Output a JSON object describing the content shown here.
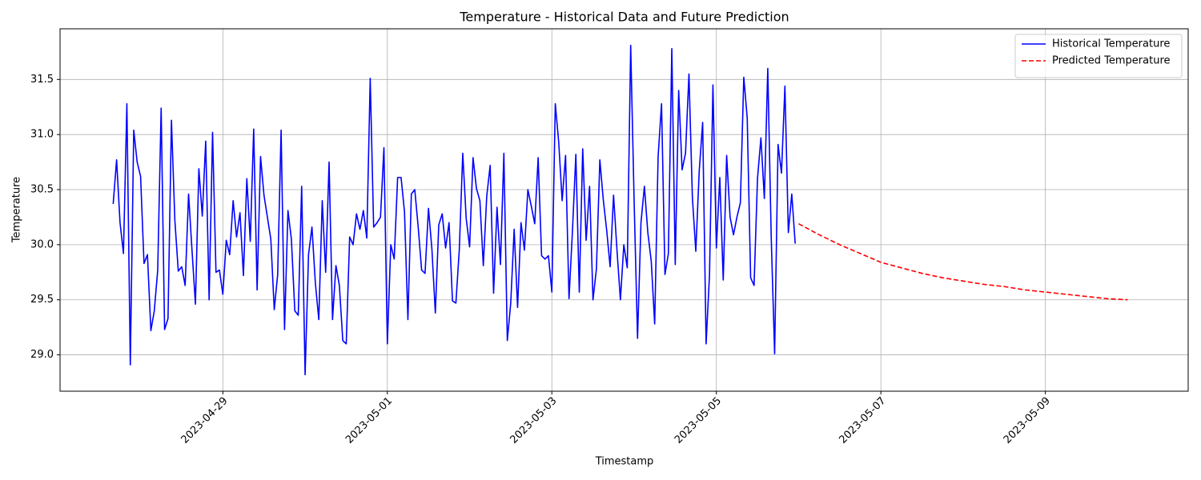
{
  "chart_data": {
    "type": "line",
    "title": "Temperature - Historical Data and Future Prediction",
    "x_label": "Timestamp",
    "y_label": "Temperature",
    "xlim": [
      "2023-04-27T00:30",
      "2023-05-10T17:40"
    ],
    "xticks": [
      "2023-04-29",
      "2023-05-01",
      "2023-05-03",
      "2023-05-05",
      "2023-05-07",
      "2023-05-09"
    ],
    "ylim": [
      28.67,
      31.96
    ],
    "yticks": [
      {
        "value": 29,
        "label": "29.0"
      },
      {
        "value": 29.5,
        "label": "29.5"
      },
      {
        "value": 30,
        "label": "30.0"
      },
      {
        "value": 30.5,
        "label": "30.5"
      },
      {
        "value": 31,
        "label": "31.0"
      },
      31.5
    ],
    "grid": true,
    "legend": "upper right",
    "series": [
      {
        "name": "Historical Temperature",
        "color": "#0000ff",
        "style": "solid",
        "x": [
          "2023-04-27T16:00",
          "2023-04-27T17:00",
          "2023-04-27T18:00",
          "2023-04-27T19:00",
          "2023-04-27T20:00",
          "2023-04-27T21:00",
          "2023-04-27T22:00",
          "2023-04-27T23:00",
          "2023-04-28T00:00",
          "2023-04-28T01:00",
          "2023-04-28T02:00",
          "2023-04-28T03:00",
          "2023-04-28T04:00",
          "2023-04-28T05:00",
          "2023-04-28T06:00",
          "2023-04-28T07:00",
          "2023-04-28T08:00",
          "2023-04-28T09:00",
          "2023-04-28T10:00",
          "2023-04-28T11:00",
          "2023-04-28T12:00",
          "2023-04-28T13:00",
          "2023-04-28T14:00",
          "2023-04-28T15:00",
          "2023-04-28T16:00",
          "2023-04-28T17:00",
          "2023-04-28T18:00",
          "2023-04-28T19:00",
          "2023-04-28T20:00",
          "2023-04-28T21:00",
          "2023-04-28T22:00",
          "2023-04-28T23:00",
          "2023-04-29T00:00",
          "2023-04-29T01:00",
          "2023-04-29T02:00",
          "2023-04-29T03:00",
          "2023-04-29T04:00",
          "2023-04-29T05:00",
          "2023-04-29T06:00",
          "2023-04-29T07:00",
          "2023-04-29T08:00",
          "2023-04-29T09:00",
          "2023-04-29T10:00",
          "2023-04-29T11:00",
          "2023-04-29T12:00",
          "2023-04-29T13:00",
          "2023-04-29T14:00",
          "2023-04-29T15:00",
          "2023-04-29T16:00",
          "2023-04-29T17:00",
          "2023-04-29T18:00",
          "2023-04-29T19:00",
          "2023-04-29T20:00",
          "2023-04-29T21:00",
          "2023-04-29T22:00",
          "2023-04-29T23:00",
          "2023-04-30T00:00",
          "2023-04-30T01:00",
          "2023-04-30T02:00",
          "2023-04-30T03:00",
          "2023-04-30T04:00",
          "2023-04-30T05:00",
          "2023-04-30T06:00",
          "2023-04-30T07:00",
          "2023-04-30T08:00",
          "2023-04-30T09:00",
          "2023-04-30T10:00",
          "2023-04-30T11:00",
          "2023-04-30T12:00",
          "2023-04-30T13:00",
          "2023-04-30T14:00",
          "2023-04-30T15:00",
          "2023-04-30T16:00",
          "2023-04-30T17:00",
          "2023-04-30T18:00",
          "2023-04-30T19:00",
          "2023-04-30T20:00",
          "2023-04-30T21:00",
          "2023-04-30T22:00",
          "2023-04-30T23:00",
          "2023-05-01T00:00",
          "2023-05-01T01:00",
          "2023-05-01T02:00",
          "2023-05-01T03:00",
          "2023-05-01T04:00",
          "2023-05-01T05:00",
          "2023-05-01T06:00",
          "2023-05-01T07:00",
          "2023-05-01T08:00",
          "2023-05-01T09:00",
          "2023-05-01T10:00",
          "2023-05-01T11:00",
          "2023-05-01T12:00",
          "2023-05-01T13:00",
          "2023-05-01T14:00",
          "2023-05-01T15:00",
          "2023-05-01T16:00",
          "2023-05-01T17:00",
          "2023-05-01T18:00",
          "2023-05-01T19:00",
          "2023-05-01T20:00",
          "2023-05-01T21:00",
          "2023-05-01T22:00",
          "2023-05-01T23:00",
          "2023-05-02T00:00",
          "2023-05-02T01:00",
          "2023-05-02T02:00",
          "2023-05-02T03:00",
          "2023-05-02T04:00",
          "2023-05-02T05:00",
          "2023-05-02T06:00",
          "2023-05-02T07:00",
          "2023-05-02T08:00",
          "2023-05-02T09:00",
          "2023-05-02T10:00",
          "2023-05-02T11:00",
          "2023-05-02T12:00",
          "2023-05-02T13:00",
          "2023-05-02T14:00",
          "2023-05-02T15:00",
          "2023-05-02T16:00",
          "2023-05-02T17:00",
          "2023-05-02T18:00",
          "2023-05-02T19:00",
          "2023-05-02T20:00",
          "2023-05-02T21:00",
          "2023-05-02T22:00",
          "2023-05-02T23:00",
          "2023-05-03T00:00",
          "2023-05-03T01:00",
          "2023-05-03T02:00",
          "2023-05-03T03:00",
          "2023-05-03T04:00",
          "2023-05-03T05:00",
          "2023-05-03T06:00",
          "2023-05-03T07:00",
          "2023-05-03T08:00",
          "2023-05-03T09:00",
          "2023-05-03T10:00",
          "2023-05-03T11:00",
          "2023-05-03T12:00",
          "2023-05-03T13:00",
          "2023-05-03T14:00",
          "2023-05-03T15:00",
          "2023-05-03T16:00",
          "2023-05-03T17:00",
          "2023-05-03T18:00",
          "2023-05-03T19:00",
          "2023-05-03T20:00",
          "2023-05-03T21:00",
          "2023-05-03T22:00",
          "2023-05-03T23:00",
          "2023-05-04T00:00",
          "2023-05-04T01:00",
          "2023-05-04T02:00",
          "2023-05-04T03:00",
          "2023-05-04T04:00",
          "2023-05-04T05:00",
          "2023-05-04T06:00",
          "2023-05-04T07:00",
          "2023-05-04T08:00",
          "2023-05-04T09:00",
          "2023-05-04T10:00",
          "2023-05-04T11:00",
          "2023-05-04T12:00",
          "2023-05-04T13:00",
          "2023-05-04T14:00",
          "2023-05-04T15:00",
          "2023-05-04T16:00",
          "2023-05-04T17:00",
          "2023-05-04T18:00",
          "2023-05-04T19:00",
          "2023-05-04T20:00",
          "2023-05-04T21:00",
          "2023-05-04T22:00",
          "2023-05-04T23:00",
          "2023-05-05T00:00",
          "2023-05-05T01:00",
          "2023-05-05T02:00",
          "2023-05-05T03:00",
          "2023-05-05T04:00",
          "2023-05-05T05:00",
          "2023-05-05T06:00",
          "2023-05-05T07:00",
          "2023-05-05T08:00",
          "2023-05-05T09:00",
          "2023-05-05T10:00",
          "2023-05-05T11:00",
          "2023-05-05T12:00",
          "2023-05-05T13:00",
          "2023-05-05T14:00",
          "2023-05-05T15:00",
          "2023-05-05T16:00",
          "2023-05-05T17:00",
          "2023-05-05T18:00",
          "2023-05-05T19:00",
          "2023-05-05T20:00",
          "2023-05-05T21:00",
          "2023-05-05T22:00",
          "2023-05-05T23:00"
        ],
        "values": [
          30.37,
          30.77,
          30.2,
          29.92,
          31.28,
          28.91,
          31.04,
          30.75,
          30.62,
          29.83,
          29.91,
          29.22,
          29.4,
          29.77,
          31.24,
          29.23,
          29.33,
          31.13,
          30.22,
          29.76,
          29.8,
          29.63,
          30.46,
          29.95,
          29.46,
          30.69,
          30.26,
          30.94,
          29.5,
          31.02,
          29.75,
          29.77,
          29.55,
          30.04,
          29.91,
          30.4,
          30.07,
          30.29,
          29.72,
          30.6,
          30.03,
          31.05,
          29.59,
          30.8,
          30.45,
          30.25,
          30.05,
          29.41,
          29.73,
          31.04,
          29.23,
          30.31,
          30.05,
          29.4,
          29.36,
          30.53,
          28.82,
          29.91,
          30.16,
          29.65,
          29.32,
          30.4,
          29.75,
          30.75,
          29.32,
          29.81,
          29.63,
          29.13,
          29.1,
          30.07,
          30.0,
          30.28,
          30.14,
          30.31,
          30.06,
          31.51,
          30.16,
          30.2,
          30.25,
          30.88,
          29.1,
          30.0,
          29.87,
          30.61,
          30.61,
          30.3,
          29.32,
          30.46,
          30.5,
          30.16,
          29.77,
          29.74,
          30.33,
          29.96,
          29.38,
          30.18,
          30.28,
          29.97,
          30.2,
          29.49,
          29.47,
          29.96,
          30.83,
          30.24,
          29.98,
          30.79,
          30.51,
          30.4,
          29.81,
          30.44,
          30.72,
          29.56,
          30.34,
          29.82,
          30.83,
          29.13,
          29.47,
          30.14,
          29.43,
          30.2,
          29.95,
          30.5,
          30.35,
          30.19,
          30.79,
          29.9,
          29.87,
          29.9,
          29.57,
          31.28,
          30.93,
          30.4,
          30.81,
          29.51,
          30.12,
          30.82,
          29.57,
          30.87,
          30.04,
          30.53,
          29.5,
          29.78,
          30.77,
          30.41,
          30.13,
          29.8,
          30.45,
          29.95,
          29.5,
          30.0,
          29.79,
          31.81,
          30.4,
          29.15,
          30.2,
          30.53,
          30.11,
          29.85,
          29.28,
          30.8,
          31.28,
          29.73,
          29.92,
          31.78,
          29.82,
          31.4,
          30.68,
          30.83,
          31.55,
          30.43,
          29.94,
          30.67,
          31.11,
          29.1,
          29.73,
          31.45,
          29.97,
          30.61,
          29.68,
          30.81,
          30.25,
          30.09,
          30.25,
          30.38,
          31.52,
          31.15,
          29.7,
          29.63,
          30.6,
          30.97,
          30.42,
          31.6,
          30.07,
          29.01,
          30.91,
          30.65,
          31.44,
          30.11,
          30.46,
          30.01
        ]
      },
      {
        "name": "Predicted Temperature",
        "color": "#ff0000",
        "style": "dashed",
        "x": [
          "2023-05-06T00:00",
          "2023-05-06T06:00",
          "2023-05-06T12:00",
          "2023-05-06T18:00",
          "2023-05-07T00:00",
          "2023-05-07T06:00",
          "2023-05-07T12:00",
          "2023-05-07T18:00",
          "2023-05-08T00:00",
          "2023-05-08T06:00",
          "2023-05-08T12:00",
          "2023-05-08T18:00",
          "2023-05-09T00:00",
          "2023-05-09T06:00",
          "2023-05-09T12:00",
          "2023-05-09T18:00",
          "2023-05-10T00:00"
        ],
        "values": [
          30.19,
          30.09,
          30.0,
          29.92,
          29.84,
          29.79,
          29.74,
          29.7,
          29.67,
          29.64,
          29.62,
          29.59,
          29.57,
          29.55,
          29.53,
          29.51,
          29.5
        ]
      }
    ]
  }
}
